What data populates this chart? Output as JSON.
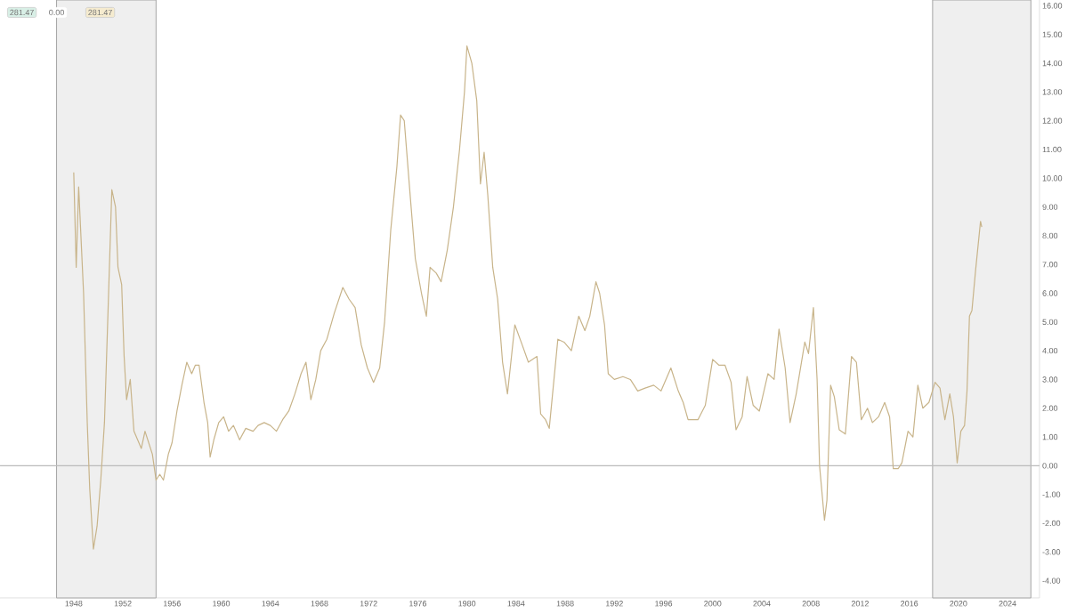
{
  "chart_data": {
    "type": "line",
    "annotations": [
      "281.47",
      "0.00",
      "281.47"
    ],
    "x": [
      1948.0,
      1948.2,
      1948.4,
      1948.8,
      1949.1,
      1949.3,
      1949.6,
      1949.9,
      1950.2,
      1950.5,
      1950.8,
      1951.1,
      1951.4,
      1951.6,
      1951.9,
      1952.1,
      1952.3,
      1952.6,
      1952.9,
      1953.2,
      1953.5,
      1953.8,
      1954.1,
      1954.4,
      1954.7,
      1955.0,
      1955.3,
      1955.7,
      1956.0,
      1956.4,
      1956.8,
      1957.2,
      1957.6,
      1957.9,
      1958.2,
      1958.6,
      1958.9,
      1959.1,
      1959.4,
      1959.8,
      1960.2,
      1960.6,
      1961.0,
      1961.5,
      1962.0,
      1962.6,
      1963.0,
      1963.5,
      1964.0,
      1964.5,
      1965.0,
      1965.5,
      1966.0,
      1966.5,
      1966.9,
      1967.3,
      1967.7,
      1968.1,
      1968.6,
      1969.2,
      1969.9,
      1970.4,
      1970.9,
      1971.4,
      1971.9,
      1972.4,
      1972.9,
      1973.3,
      1973.8,
      1974.3,
      1974.6,
      1974.9,
      1975.4,
      1975.8,
      1976.3,
      1976.7,
      1977.0,
      1977.5,
      1977.9,
      1978.4,
      1978.9,
      1979.4,
      1979.8,
      1980.0,
      1980.4,
      1980.8,
      1981.1,
      1981.4,
      1981.7,
      1982.1,
      1982.5,
      1982.9,
      1983.3,
      1983.9,
      1984.5,
      1985.0,
      1985.7,
      1986.0,
      1986.4,
      1986.7,
      1987.4,
      1987.9,
      1988.5,
      1989.1,
      1989.6,
      1990.0,
      1990.5,
      1990.8,
      1991.2,
      1991.5,
      1992.0,
      1992.7,
      1993.3,
      1993.9,
      1994.5,
      1995.2,
      1995.8,
      1996.6,
      1997.2,
      1997.6,
      1998.0,
      1998.8,
      1999.4,
      2000.0,
      2000.5,
      2001.0,
      2001.5,
      2001.9,
      2002.4,
      2002.8,
      2003.3,
      2003.8,
      2004.5,
      2005.0,
      2005.4,
      2005.9,
      2006.3,
      2006.8,
      2007.5,
      2007.8,
      2008.2,
      2008.5,
      2008.7,
      2009.1,
      2009.3,
      2009.6,
      2009.9,
      2010.3,
      2010.8,
      2011.3,
      2011.7,
      2012.1,
      2012.6,
      2013.0,
      2013.5,
      2014.0,
      2014.4,
      2014.7,
      2015.1,
      2015.4,
      2015.9,
      2016.3,
      2016.7,
      2017.1,
      2017.6,
      2018.1,
      2018.5,
      2018.9,
      2019.3,
      2019.6,
      2019.9,
      2020.2,
      2020.5,
      2020.7,
      2020.9,
      2021.1,
      2021.4,
      2021.8,
      2021.9
    ],
    "series": [
      {
        "color": "#c8b48a",
        "values": [
          10.2,
          6.9,
          9.7,
          6.0,
          1.5,
          -0.8,
          -2.9,
          -2.1,
          -0.5,
          1.5,
          5.5,
          9.6,
          9.0,
          6.9,
          6.3,
          3.8,
          2.3,
          3.0,
          1.2,
          0.9,
          0.6,
          1.2,
          0.8,
          0.4,
          -0.5,
          -0.3,
          -0.5,
          0.4,
          0.8,
          1.9,
          2.8,
          3.6,
          3.2,
          3.5,
          3.5,
          2.2,
          1.5,
          0.3,
          0.9,
          1.5,
          1.7,
          1.2,
          1.4,
          0.9,
          1.3,
          1.2,
          1.4,
          1.5,
          1.4,
          1.2,
          1.6,
          1.9,
          2.5,
          3.2,
          3.6,
          2.3,
          3.0,
          4.0,
          4.4,
          5.3,
          6.2,
          5.8,
          5.5,
          4.2,
          3.4,
          2.9,
          3.4,
          5.0,
          8.2,
          10.4,
          12.2,
          12.0,
          9.3,
          7.2,
          6.0,
          5.2,
          6.9,
          6.7,
          6.4,
          7.5,
          9.0,
          11.0,
          13.0,
          14.6,
          14.0,
          12.7,
          9.8,
          10.9,
          9.4,
          6.9,
          5.8,
          3.6,
          2.5,
          4.9,
          4.2,
          3.6,
          3.8,
          1.8,
          1.6,
          1.3,
          4.4,
          4.3,
          4.0,
          5.2,
          4.7,
          5.2,
          6.4,
          6.0,
          4.9,
          3.2,
          3.0,
          3.1,
          3.0,
          2.6,
          2.7,
          2.8,
          2.6,
          3.4,
          2.6,
          2.2,
          1.6,
          1.6,
          2.1,
          3.7,
          3.5,
          3.5,
          2.9,
          1.25,
          1.7,
          3.1,
          2.1,
          1.9,
          3.2,
          3.0,
          4.75,
          3.4,
          1.5,
          2.5,
          4.3,
          3.9,
          5.5,
          3.0,
          0.0,
          -1.9,
          -1.2,
          2.8,
          2.4,
          1.25,
          1.1,
          3.8,
          3.6,
          1.6,
          2.0,
          1.5,
          1.7,
          2.2,
          1.7,
          -0.1,
          -0.1,
          0.1,
          1.2,
          1.0,
          2.8,
          2.0,
          2.2,
          2.9,
          2.7,
          1.6,
          2.5,
          1.7,
          0.1,
          1.2,
          1.4,
          2.6,
          5.2,
          5.4,
          6.8,
          8.5,
          8.3
        ]
      }
    ],
    "xlim": [
      1942,
      2026.6
    ],
    "xticks": [
      1948,
      1952,
      1956,
      1960,
      1964,
      1968,
      1972,
      1976,
      1980,
      1984,
      1988,
      1992,
      1996,
      2000,
      2004,
      2008,
      2012,
      2016,
      2020,
      2024
    ],
    "ylim": [
      -4.6,
      16.2
    ],
    "yticks": [
      {
        "value": -4,
        "label": "-4.00"
      },
      {
        "value": -3,
        "label": "-3.00"
      },
      {
        "value": -2,
        "label": "-2.00"
      },
      {
        "value": -1,
        "label": "-1.00"
      },
      {
        "value": 0,
        "label": "0.00"
      },
      {
        "value": 1,
        "label": "1.00"
      },
      {
        "value": 2,
        "label": "2.00"
      },
      {
        "value": 3,
        "label": "3.00"
      },
      {
        "value": 4,
        "label": "4.00"
      },
      {
        "value": 5,
        "label": "5.00"
      },
      {
        "value": 6,
        "label": "6.00"
      },
      {
        "value": 7,
        "label": "7.00"
      },
      {
        "value": 8,
        "label": "8.00"
      },
      {
        "value": 9,
        "label": "9.00"
      },
      {
        "value": 10,
        "label": "10.00"
      },
      {
        "value": 11,
        "label": "11.00"
      },
      {
        "value": 12,
        "label": "12.00"
      },
      {
        "value": 13,
        "label": "13.00"
      },
      {
        "value": 14,
        "label": "14.00"
      },
      {
        "value": 15,
        "label": "15.00"
      },
      {
        "value": 16,
        "label": "16.00"
      }
    ],
    "ref_lines": [
      {
        "axis": "y",
        "value": 0,
        "color": "#bbbbbb"
      }
    ],
    "bands": [
      {
        "axis": "x",
        "from": 1946.6,
        "to": 1954.7,
        "color": "#efefef"
      },
      {
        "axis": "x",
        "from": 2017.9,
        "to": 2025.9,
        "color": "#efefef"
      }
    ],
    "grid": false
  }
}
